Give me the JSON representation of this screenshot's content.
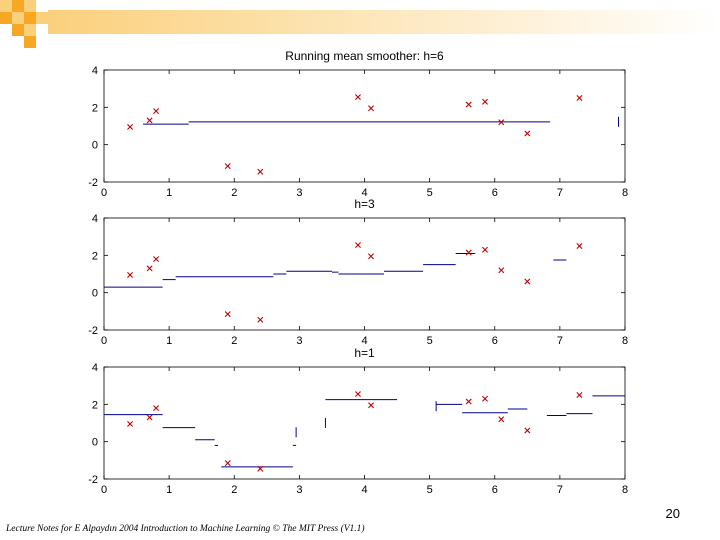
{
  "slide": {
    "page_number": "20",
    "footer": "Lecture Notes for E Alpaydın 2004 Introduction to Machine Learning © The MIT Press (V1.1)"
  },
  "colors": {
    "line": "#00008b",
    "marker": "#c00000",
    "deco_a": "#f7a823",
    "deco_b": "#fbd07c"
  },
  "chart_data": [
    {
      "type": "line",
      "title": "Running mean smoother: h=6",
      "xlim": [
        0,
        8
      ],
      "ylim": [
        -2,
        4
      ],
      "xticks": [
        "0",
        "1",
        "2",
        "3",
        "4",
        "5",
        "6",
        "7",
        "8"
      ],
      "yticks": [
        "-2",
        "0",
        "2",
        "4"
      ],
      "points": [
        [
          0.4,
          0.95
        ],
        [
          0.7,
          1.3
        ],
        [
          0.8,
          1.8
        ],
        [
          1.9,
          -1.15
        ],
        [
          2.4,
          -1.45
        ],
        [
          3.9,
          2.55
        ],
        [
          4.1,
          1.95
        ],
        [
          5.6,
          2.15
        ],
        [
          5.85,
          2.3
        ],
        [
          6.1,
          1.2
        ],
        [
          6.5,
          0.6
        ],
        [
          7.3,
          2.5
        ]
      ],
      "segments": [
        [
          0.6,
          1.3,
          1.1
        ],
        [
          1.3,
          6.85,
          1.22
        ],
        [
          7.9,
          7.9,
          1.22
        ]
      ]
    },
    {
      "type": "line",
      "title": "h=3",
      "xlim": [
        0,
        8
      ],
      "ylim": [
        -2,
        4
      ],
      "xticks": [
        "0",
        "1",
        "2",
        "3",
        "4",
        "5",
        "6",
        "7",
        "8"
      ],
      "yticks": [
        "-2",
        "0",
        "2",
        "4"
      ],
      "points": [
        [
          0.4,
          0.95
        ],
        [
          0.7,
          1.3
        ],
        [
          0.8,
          1.8
        ],
        [
          1.9,
          -1.15
        ],
        [
          2.4,
          -1.45
        ],
        [
          3.9,
          2.55
        ],
        [
          4.1,
          1.95
        ],
        [
          5.6,
          2.15
        ],
        [
          5.85,
          2.3
        ],
        [
          6.1,
          1.2
        ],
        [
          6.5,
          0.6
        ],
        [
          7.3,
          2.5
        ]
      ],
      "segments": [
        [
          0.0,
          0.9,
          0.3
        ],
        [
          0.9,
          1.1,
          0.7
        ],
        [
          1.1,
          2.6,
          0.85
        ],
        [
          2.6,
          2.8,
          1.0
        ],
        [
          2.8,
          3.5,
          1.15
        ],
        [
          3.5,
          3.6,
          1.1
        ],
        [
          3.6,
          4.3,
          1.0
        ],
        [
          4.3,
          4.9,
          1.15
        ],
        [
          4.9,
          5.4,
          1.5
        ],
        [
          5.4,
          5.7,
          2.1
        ],
        [
          6.9,
          7.1,
          1.75
        ]
      ]
    },
    {
      "type": "line",
      "title": "h=1",
      "xlim": [
        0,
        8
      ],
      "ylim": [
        -2,
        4
      ],
      "xticks": [
        "0",
        "1",
        "2",
        "3",
        "4",
        "5",
        "6",
        "7",
        "8"
      ],
      "yticks": [
        "-2",
        "0",
        "2",
        "4"
      ],
      "points": [
        [
          0.4,
          0.95
        ],
        [
          0.7,
          1.3
        ],
        [
          0.8,
          1.8
        ],
        [
          1.9,
          -1.15
        ],
        [
          2.4,
          -1.45
        ],
        [
          3.9,
          2.55
        ],
        [
          4.1,
          1.95
        ],
        [
          5.6,
          2.15
        ],
        [
          5.85,
          2.3
        ],
        [
          6.1,
          1.2
        ],
        [
          6.5,
          0.6
        ],
        [
          7.3,
          2.5
        ]
      ],
      "segments": [
        [
          0.0,
          0.9,
          1.45
        ],
        [
          0.9,
          1.4,
          0.75
        ],
        [
          1.4,
          1.7,
          0.1
        ],
        [
          1.7,
          1.75,
          -0.2
        ],
        [
          1.8,
          2.9,
          -1.35
        ],
        [
          2.9,
          2.95,
          -0.2
        ],
        [
          2.95,
          2.95,
          0.5
        ],
        [
          3.4,
          3.4,
          1.0
        ],
        [
          3.4,
          4.5,
          2.25
        ],
        [
          5.1,
          5.1,
          1.9
        ],
        [
          5.1,
          5.5,
          2.0
        ],
        [
          5.5,
          6.2,
          1.55
        ],
        [
          6.2,
          6.5,
          1.75
        ],
        [
          6.8,
          7.1,
          1.4
        ],
        [
          7.1,
          7.5,
          1.5
        ],
        [
          7.5,
          8.0,
          2.45
        ]
      ]
    }
  ]
}
